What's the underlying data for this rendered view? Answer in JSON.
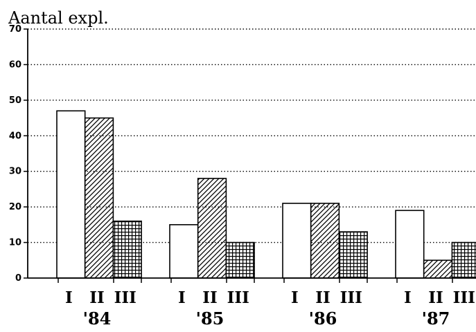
{
  "chart_data": {
    "type": "bar",
    "ylabel": "Aantal expl.",
    "ylim": [
      0,
      70
    ],
    "yticks": [
      0,
      10,
      20,
      30,
      40,
      50,
      60,
      70
    ],
    "grid": "dotted horizontal",
    "groups": [
      {
        "label": "'84",
        "bars": [
          {
            "label": "I",
            "value": 47,
            "pattern": "blank"
          },
          {
            "label": "II",
            "value": 45,
            "pattern": "hatched"
          },
          {
            "label": "III",
            "value": 16,
            "pattern": "crosshatched"
          }
        ]
      },
      {
        "label": "'85",
        "bars": [
          {
            "label": "I",
            "value": 15,
            "pattern": "blank"
          },
          {
            "label": "II",
            "value": 28,
            "pattern": "hatched"
          },
          {
            "label": "III",
            "value": 10,
            "pattern": "crosshatched"
          }
        ]
      },
      {
        "label": "'86",
        "bars": [
          {
            "label": "I",
            "value": 21,
            "pattern": "blank"
          },
          {
            "label": "II",
            "value": 21,
            "pattern": "hatched"
          },
          {
            "label": "III",
            "value": 13,
            "pattern": "crosshatched"
          }
        ]
      },
      {
        "label": "'87",
        "bars": [
          {
            "label": "I",
            "value": 19,
            "pattern": "blank"
          },
          {
            "label": "II",
            "value": 5,
            "pattern": "hatched"
          },
          {
            "label": "III",
            "value": 10,
            "pattern": "crosshatched"
          }
        ]
      }
    ]
  }
}
